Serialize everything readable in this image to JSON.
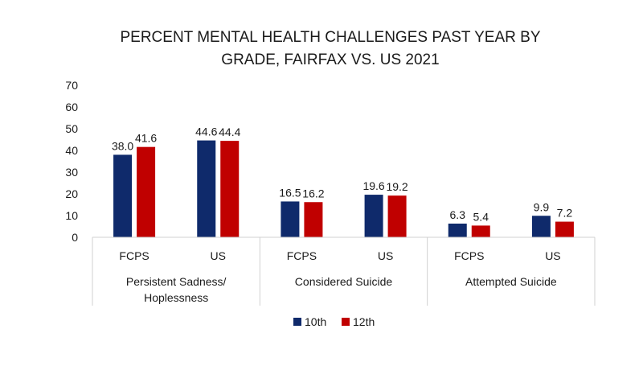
{
  "chart_data": {
    "type": "bar",
    "title_lines": [
      "PERCENT MENTAL HEALTH CHALLENGES PAST YEAR BY",
      "GRADE, FAIRFAX VS. US 2021"
    ],
    "groups": [
      {
        "label_lines": [
          "Persistent Sadness/",
          "Hoplessness"
        ],
        "categories": [
          "FCPS",
          "US"
        ]
      },
      {
        "label_lines": [
          "Considered Suicide"
        ],
        "categories": [
          "FCPS",
          "US"
        ]
      },
      {
        "label_lines": [
          "Attempted Suicide"
        ],
        "categories": [
          "FCPS",
          "US"
        ]
      }
    ],
    "categories": [
      "FCPS",
      "US",
      "FCPS",
      "US",
      "FCPS",
      "US"
    ],
    "series": [
      {
        "name": "10th",
        "color": "#0f2a6b",
        "values": [
          38.0,
          44.6,
          16.5,
          19.6,
          6.3,
          9.9
        ]
      },
      {
        "name": "12th",
        "color": "#c00000",
        "values": [
          41.6,
          44.4,
          16.2,
          19.2,
          5.4,
          7.2
        ]
      }
    ],
    "ylim": [
      0,
      70
    ],
    "yticks": [
      0,
      10,
      20,
      30,
      40,
      50,
      60,
      70
    ],
    "grid": false,
    "legend": "bottom"
  }
}
